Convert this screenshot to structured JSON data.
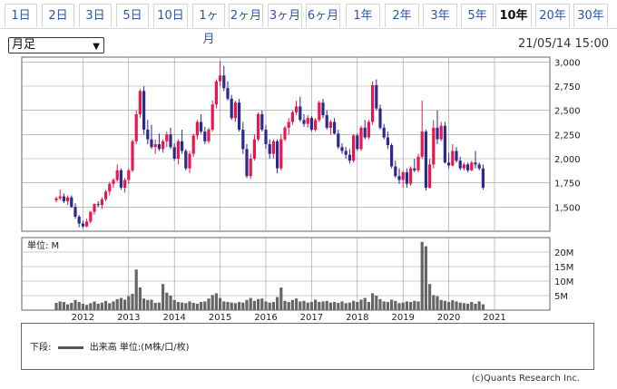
{
  "tabs": [
    "1日",
    "2日",
    "3日",
    "5日",
    "10日",
    "1ヶ月",
    "2ヶ月",
    "3ヶ月",
    "6ヶ月",
    "1年",
    "2年",
    "3年",
    "5年",
    "10年",
    "20年",
    "30年"
  ],
  "active_tab": "10年",
  "period_select": "月足",
  "timestamp": "21/05/14 15:00",
  "volume_unit_label": "単位: M",
  "legend": {
    "prefix": "下段:",
    "text": "出来高 単位:(M株/口/枚)"
  },
  "credit": "(c)Quants Research Inc.",
  "colors": {
    "up": "#e8174f",
    "down": "#2c2a8c",
    "volume": "#666666",
    "grid": "#999999"
  },
  "chart_data": [
    {
      "type": "candlestick",
      "title": "",
      "x_tick_labels": [
        "2012",
        "2013",
        "2014",
        "2015",
        "2016",
        "2017",
        "2018",
        "2019",
        "2020",
        "2021"
      ],
      "y_tick_labels": [
        "3,000",
        "2,750",
        "2,500",
        "2,250",
        "2,000",
        "1,750",
        "1,500"
      ],
      "ylim": [
        1250,
        3050
      ],
      "grid": true,
      "candles": [
        [
          1570,
          1610,
          1550,
          1590
        ],
        [
          1590,
          1680,
          1570,
          1610
        ],
        [
          1610,
          1640,
          1540,
          1560
        ],
        [
          1560,
          1620,
          1520,
          1600
        ],
        [
          1600,
          1620,
          1490,
          1500
        ],
        [
          1500,
          1540,
          1380,
          1400
        ],
        [
          1400,
          1420,
          1290,
          1330
        ],
        [
          1330,
          1360,
          1280,
          1300
        ],
        [
          1300,
          1380,
          1290,
          1350
        ],
        [
          1350,
          1460,
          1330,
          1450
        ],
        [
          1450,
          1540,
          1420,
          1530
        ],
        [
          1530,
          1560,
          1500,
          1520
        ],
        [
          1520,
          1600,
          1480,
          1580
        ],
        [
          1580,
          1680,
          1560,
          1660
        ],
        [
          1660,
          1760,
          1620,
          1740
        ],
        [
          1740,
          1800,
          1700,
          1780
        ],
        [
          1780,
          1940,
          1760,
          1880
        ],
        [
          1880,
          1900,
          1680,
          1700
        ],
        [
          1700,
          1800,
          1650,
          1780
        ],
        [
          1780,
          1900,
          1740,
          1880
        ],
        [
          1880,
          2200,
          1860,
          2180
        ],
        [
          2180,
          2500,
          2150,
          2460
        ],
        [
          2460,
          2720,
          2420,
          2700
        ],
        [
          2700,
          2750,
          2250,
          2300
        ],
        [
          2300,
          2400,
          2150,
          2200
        ],
        [
          2200,
          2350,
          2100,
          2120
        ],
        [
          2120,
          2200,
          2050,
          2150
        ],
        [
          2150,
          2260,
          2080,
          2100
        ],
        [
          2100,
          2200,
          2060,
          2180
        ],
        [
          2180,
          2280,
          2120,
          2250
        ],
        [
          2250,
          2320,
          2100,
          2120
        ],
        [
          2120,
          2160,
          1980,
          2000
        ],
        [
          2000,
          2200,
          1940,
          2180
        ],
        [
          2180,
          2300,
          2050,
          2080
        ],
        [
          2080,
          2100,
          1880,
          1900
        ],
        [
          1900,
          2080,
          1850,
          2050
        ],
        [
          2050,
          2260,
          2020,
          2240
        ],
        [
          2240,
          2400,
          2200,
          2380
        ],
        [
          2380,
          2460,
          2260,
          2280
        ],
        [
          2280,
          2330,
          2150,
          2180
        ],
        [
          2180,
          2320,
          2160,
          2300
        ],
        [
          2300,
          2600,
          2280,
          2560
        ],
        [
          2560,
          2820,
          2520,
          2800
        ],
        [
          2800,
          3010,
          2750,
          2860
        ],
        [
          2860,
          2960,
          2700,
          2730
        ],
        [
          2730,
          2800,
          2600,
          2620
        ],
        [
          2620,
          2660,
          2400,
          2420
        ],
        [
          2420,
          2600,
          2380,
          2580
        ],
        [
          2580,
          2620,
          2280,
          2300
        ],
        [
          2300,
          2380,
          2050,
          2100
        ],
        [
          2100,
          2150,
          1800,
          1820
        ],
        [
          1820,
          2050,
          1790,
          2000
        ],
        [
          2000,
          2250,
          1980,
          2200
        ],
        [
          2200,
          2480,
          2180,
          2460
        ],
        [
          2460,
          2500,
          2280,
          2300
        ],
        [
          2300,
          2350,
          2100,
          2150
        ],
        [
          2150,
          2200,
          2000,
          2050
        ],
        [
          2050,
          2200,
          2000,
          2180
        ],
        [
          2180,
          2200,
          1850,
          1900
        ],
        [
          1900,
          2250,
          1880,
          2200
        ],
        [
          2200,
          2340,
          2180,
          2320
        ],
        [
          2320,
          2420,
          2250,
          2380
        ],
        [
          2380,
          2500,
          2350,
          2480
        ],
        [
          2480,
          2600,
          2450,
          2540
        ],
        [
          2540,
          2640,
          2380,
          2400
        ],
        [
          2400,
          2460,
          2330,
          2360
        ],
        [
          2360,
          2450,
          2320,
          2420
        ],
        [
          2420,
          2440,
          2280,
          2300
        ],
        [
          2300,
          2420,
          2280,
          2400
        ],
        [
          2400,
          2600,
          2380,
          2580
        ],
        [
          2580,
          2620,
          2420,
          2450
        ],
        [
          2450,
          2500,
          2300,
          2320
        ],
        [
          2320,
          2400,
          2250,
          2380
        ],
        [
          2380,
          2420,
          2250,
          2260
        ],
        [
          2260,
          2300,
          2100,
          2120
        ],
        [
          2120,
          2160,
          2050,
          2080
        ],
        [
          2080,
          2120,
          2000,
          2040
        ],
        [
          2040,
          2100,
          1950,
          1980
        ],
        [
          1980,
          2250,
          1960,
          2240
        ],
        [
          2240,
          2260,
          2080,
          2100
        ],
        [
          2100,
          2340,
          2080,
          2320
        ],
        [
          2320,
          2400,
          2200,
          2220
        ],
        [
          2220,
          2400,
          2200,
          2380
        ],
        [
          2380,
          2800,
          2350,
          2760
        ],
        [
          2760,
          2820,
          2500,
          2520
        ],
        [
          2520,
          2560,
          2300,
          2320
        ],
        [
          2320,
          2360,
          2200,
          2220
        ],
        [
          2220,
          2280,
          2100,
          2140
        ],
        [
          2140,
          2160,
          1900,
          1920
        ],
        [
          1920,
          1980,
          1800,
          1820
        ],
        [
          1820,
          1900,
          1740,
          1780
        ],
        [
          1780,
          1880,
          1700,
          1860
        ],
        [
          1860,
          1900,
          1700,
          1740
        ],
        [
          1740,
          1920,
          1720,
          1900
        ],
        [
          1900,
          2000,
          1860,
          1880
        ],
        [
          1880,
          2050,
          1860,
          2020
        ],
        [
          2020,
          2600,
          2000,
          2280
        ],
        [
          2280,
          2300,
          1670,
          1700
        ],
        [
          1700,
          2000,
          1690,
          1940
        ],
        [
          1940,
          2400,
          1900,
          2320
        ],
        [
          2320,
          2500,
          2150,
          2200
        ],
        [
          2200,
          2380,
          2180,
          2340
        ],
        [
          2340,
          2380,
          1950,
          1960
        ],
        [
          1960,
          2060,
          1900,
          1930
        ],
        [
          1930,
          2150,
          1920,
          2080
        ],
        [
          2080,
          2120,
          1960,
          1980
        ],
        [
          1980,
          2020,
          1880,
          1900
        ],
        [
          1900,
          1960,
          1880,
          1940
        ],
        [
          1940,
          1960,
          1860,
          1880
        ],
        [
          1880,
          1980,
          1870,
          1960
        ],
        [
          1960,
          2080,
          1900,
          1940
        ],
        [
          1940,
          1960,
          1880,
          1900
        ],
        [
          1900,
          1940,
          1680,
          1700
        ]
      ],
      "candle_value_order": [
        "open",
        "high",
        "low",
        "close"
      ]
    },
    {
      "type": "bar",
      "series_label": "出来高",
      "y_tick_labels": [
        "20M",
        "15M",
        "10M",
        "5M"
      ],
      "ylim": [
        0,
        25
      ],
      "values": [
        2.5,
        3.0,
        2.8,
        2.0,
        2.5,
        3.5,
        2.8,
        2.2,
        1.8,
        2.4,
        3.0,
        2.2,
        2.6,
        3.2,
        2.4,
        3.0,
        3.8,
        4.2,
        3.6,
        4.8,
        5.6,
        14.0,
        7.8,
        4.0,
        3.5,
        3.6,
        2.5,
        2.6,
        9.0,
        6.0,
        5.0,
        3.5,
        2.8,
        2.6,
        2.4,
        3.0,
        2.5,
        2.2,
        2.8,
        3.0,
        4.0,
        5.2,
        5.8,
        4.2,
        3.0,
        2.8,
        2.6,
        2.4,
        2.8,
        2.6,
        3.5,
        4.2,
        3.2,
        3.8,
        4.0,
        3.0,
        2.6,
        2.8,
        4.5,
        7.8,
        3.2,
        2.8,
        3.5,
        4.0,
        3.0,
        3.2,
        2.6,
        2.8,
        3.6,
        2.8,
        3.0,
        3.2,
        2.6,
        2.8,
        2.5,
        3.0,
        2.4,
        2.6,
        3.2,
        2.8,
        3.6,
        4.2,
        2.8,
        5.8,
        5.0,
        3.8,
        3.0,
        2.8,
        3.6,
        3.2,
        2.4,
        2.6,
        3.0,
        2.8,
        3.2,
        3.0,
        23.5,
        22.0,
        9.0,
        5.2,
        4.8,
        3.5,
        3.2,
        2.8,
        3.4,
        3.0,
        2.6,
        2.4,
        2.2,
        2.8,
        2.2,
        3.0,
        2.0
      ]
    }
  ]
}
